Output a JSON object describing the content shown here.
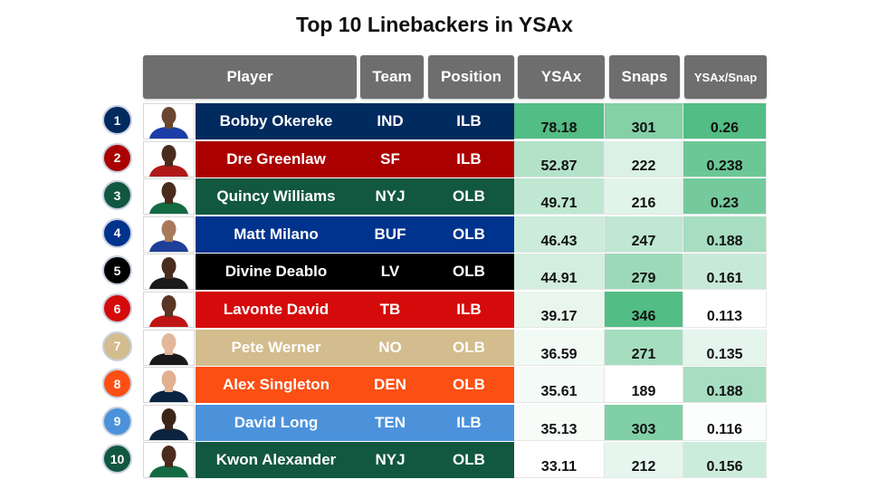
{
  "chart_data": {
    "type": "table",
    "title": "Top 10 Linebackers in YSAx",
    "columns": [
      "Player",
      "Team",
      "Position",
      "YSAx",
      "Snaps",
      "YSAx/Snap"
    ],
    "rows": [
      {
        "rank": "1",
        "player": "Bobby Okereke",
        "team": "IND",
        "position": "ILB",
        "ysax": "78.18",
        "snaps": "301",
        "ysax_snap": "0.26",
        "team_color": "#012a5e",
        "text_color": "#ffffff",
        "skin": "#6b4631",
        "helmet": "#1a3ea8"
      },
      {
        "rank": "2",
        "player": "Dre Greenlaw",
        "team": "SF",
        "position": "ILB",
        "ysax": "52.87",
        "snaps": "222",
        "ysax_snap": "0.238",
        "team_color": "#aa0000",
        "text_color": "#ffffff",
        "skin": "#4a2c1d",
        "helmet": "#b01818"
      },
      {
        "rank": "3",
        "player": "Quincy Williams",
        "team": "NYJ",
        "position": "OLB",
        "ysax": "49.71",
        "snaps": "216",
        "ysax_snap": "0.23",
        "team_color": "#125740",
        "text_color": "#ffffff",
        "skin": "#4a2c1d",
        "helmet": "#146b43"
      },
      {
        "rank": "4",
        "player": "Matt Milano",
        "team": "BUF",
        "position": "OLB",
        "ysax": "46.43",
        "snaps": "247",
        "ysax_snap": "0.188",
        "team_color": "#00338d",
        "text_color": "#ffffff",
        "skin": "#a87a5b",
        "helmet": "#1e3f9a"
      },
      {
        "rank": "5",
        "player": "Divine Deablo",
        "team": "LV",
        "position": "OLB",
        "ysax": "44.91",
        "snaps": "279",
        "ysax_snap": "0.161",
        "team_color": "#000000",
        "text_color": "#ffffff",
        "skin": "#4a2c1d",
        "helmet": "#1a1a1a"
      },
      {
        "rank": "6",
        "player": "Lavonte David",
        "team": "TB",
        "position": "ILB",
        "ysax": "39.17",
        "snaps": "346",
        "ysax_snap": "0.113",
        "team_color": "#d50a0a",
        "text_color": "#ffffff",
        "skin": "#5a3624",
        "helmet": "#c01515"
      },
      {
        "rank": "7",
        "player": "Pete Werner",
        "team": "NO",
        "position": "OLB",
        "ysax": "36.59",
        "snaps": "271",
        "ysax_snap": "0.135",
        "team_color": "#d3bc8d",
        "text_color": "#ffffff",
        "skin": "#e2b79a",
        "helmet": "#1a1a1a"
      },
      {
        "rank": "8",
        "player": "Alex Singleton",
        "team": "DEN",
        "position": "OLB",
        "ysax": "35.61",
        "snaps": "189",
        "ysax_snap": "0.188",
        "team_color": "#fb4f14",
        "text_color": "#ffffff",
        "skin": "#e0b090",
        "helmet": "#0a2343"
      },
      {
        "rank": "9",
        "player": "David Long",
        "team": "TEN",
        "position": "ILB",
        "ysax": "35.13",
        "snaps": "303",
        "ysax_snap": "0.116",
        "team_color": "#4b92db",
        "text_color": "#ffffff",
        "skin": "#3b2418",
        "helmet": "#0c2340"
      },
      {
        "rank": "10",
        "player": "Kwon Alexander",
        "team": "NYJ",
        "position": "OLB",
        "ysax": "33.11",
        "snaps": "212",
        "ysax_snap": "0.156",
        "team_color": "#125740",
        "text_color": "#ffffff",
        "skin": "#4a2c1d",
        "helmet": "#146b43"
      }
    ],
    "heatmap_scale": {
      "low": "#ffffff",
      "high": "#52bd84"
    }
  }
}
